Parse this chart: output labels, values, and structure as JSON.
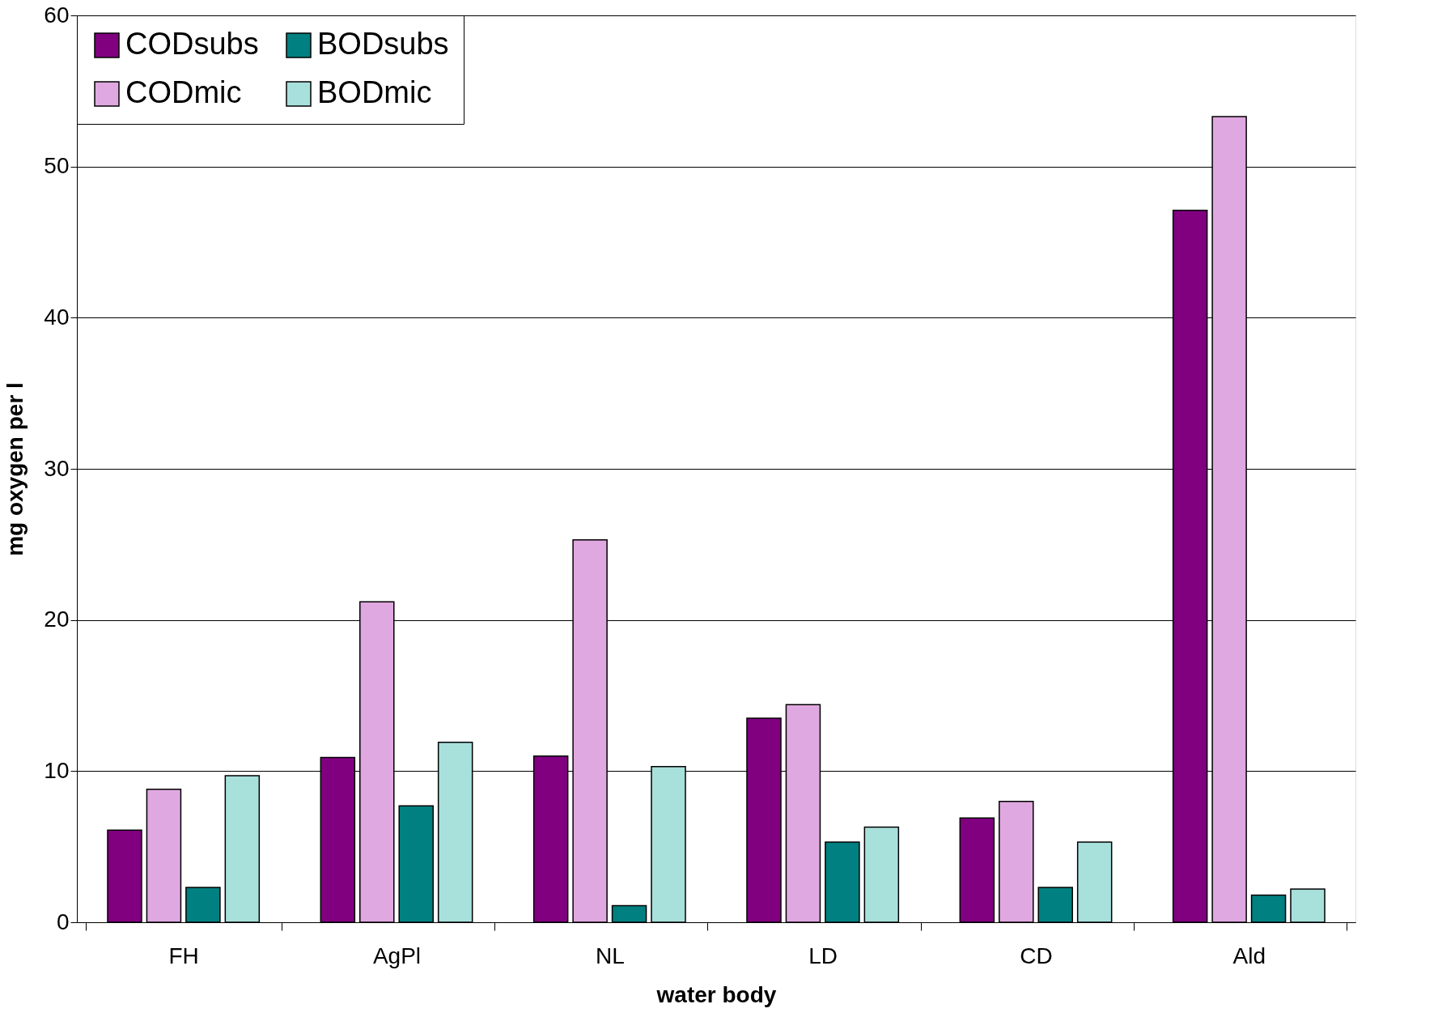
{
  "chart_data": {
    "type": "bar",
    "xlabel": "water body",
    "ylabel": "mg oxygen per l",
    "categories": [
      "FH",
      "AgPl",
      "NL",
      "LD",
      "CD",
      "Ald"
    ],
    "series": [
      {
        "name": "CODsubs",
        "color": "#800080",
        "values": [
          6.1,
          10.9,
          11.0,
          13.5,
          6.9,
          47.1
        ]
      },
      {
        "name": "CODmic",
        "color": "#e0a8e0",
        "values": [
          8.8,
          21.2,
          25.3,
          14.4,
          8.0,
          53.3
        ]
      },
      {
        "name": "BODsubs",
        "color": "#008080",
        "values": [
          2.3,
          7.7,
          1.1,
          5.3,
          2.3,
          1.8
        ]
      },
      {
        "name": "BODmic",
        "color": "#a8e0dc",
        "values": [
          9.7,
          11.9,
          10.3,
          6.3,
          5.3,
          2.2
        ]
      }
    ],
    "ylim": [
      0,
      60
    ],
    "yticks": [
      0,
      10,
      20,
      30,
      40,
      50,
      60
    ],
    "grid": "y",
    "legend": "top left"
  }
}
